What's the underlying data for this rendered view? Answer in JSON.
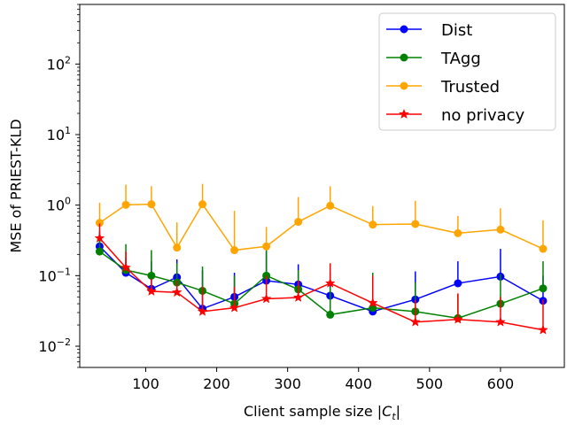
{
  "chart_data": {
    "type": "line",
    "xlabel": "Client sample size |C_t|",
    "xlabel_parts": {
      "prefix": "Client sample size |",
      "var": "C",
      "sub": "t",
      "suffix": "|"
    },
    "ylabel": "MSE of PRIEST-KLD",
    "xlim": [
      7,
      690
    ],
    "ylim": [
      0.005,
      700
    ],
    "yscale": "log",
    "xticks": [
      100,
      200,
      300,
      400,
      500,
      600
    ],
    "xtick_labels": [
      "100",
      "200",
      "300",
      "400",
      "500",
      "600"
    ],
    "yticks": [
      0.01,
      0.1,
      1,
      10,
      100
    ],
    "ytick_labels": [
      {
        "base": "10",
        "exp": "−2"
      },
      {
        "base": "10",
        "exp": "−1"
      },
      {
        "base": "10",
        "exp": "0"
      },
      {
        "base": "10",
        "exp": "1"
      },
      {
        "base": "10",
        "exp": "2"
      }
    ],
    "grid": false,
    "legend_position": "top-right",
    "x": [
      35,
      72,
      108,
      144,
      180,
      225,
      270,
      315,
      360,
      420,
      480,
      540,
      600,
      660
    ],
    "series": [
      {
        "name": "Dist",
        "color": "#0000ff",
        "marker": "circle",
        "values": [
          0.26,
          0.11,
          0.065,
          0.095,
          0.034,
          0.05,
          0.085,
          0.075,
          0.052,
          0.031,
          0.046,
          0.078,
          0.097,
          0.044
        ],
        "err_upper": [
          0.42,
          0.18,
          0.16,
          0.17,
          0.12,
          0.11,
          0.22,
          0.145,
          0.11,
          0.07,
          0.115,
          0.16,
          0.24,
          0.1
        ]
      },
      {
        "name": "TAgg",
        "color": "#008000",
        "marker": "circle",
        "values": [
          0.22,
          0.12,
          0.1,
          0.08,
          0.061,
          0.04,
          0.1,
          0.064,
          0.028,
          0.035,
          0.031,
          0.025,
          0.04,
          0.066
        ],
        "err_upper": [
          0.36,
          0.28,
          0.23,
          0.15,
          0.135,
          0.1,
          0.23,
          0.12,
          0.07,
          0.11,
          0.08,
          0.055,
          0.105,
          0.16
        ]
      },
      {
        "name": "Trusted",
        "color": "#ffa500",
        "marker": "circle",
        "values": [
          0.56,
          1.01,
          1.03,
          0.25,
          1.03,
          0.23,
          0.26,
          0.58,
          0.98,
          0.53,
          0.54,
          0.4,
          0.45,
          0.24
        ],
        "err_upper": [
          1.08,
          1.95,
          1.85,
          0.57,
          2.0,
          0.83,
          0.49,
          1.3,
          1.85,
          0.97,
          1.15,
          0.7,
          0.9,
          0.61
        ]
      },
      {
        "name": "no privacy",
        "color": "#ff0000",
        "marker": "star",
        "values": [
          0.34,
          0.13,
          0.06,
          0.058,
          0.031,
          0.035,
          0.047,
          0.049,
          0.078,
          0.041,
          0.022,
          0.024,
          0.022,
          0.017
        ],
        "err_upper": [
          0.55,
          0.22,
          0.09,
          0.085,
          0.07,
          0.07,
          0.1,
          0.085,
          0.15,
          0.1,
          0.045,
          0.056,
          0.05,
          0.046
        ]
      }
    ]
  }
}
